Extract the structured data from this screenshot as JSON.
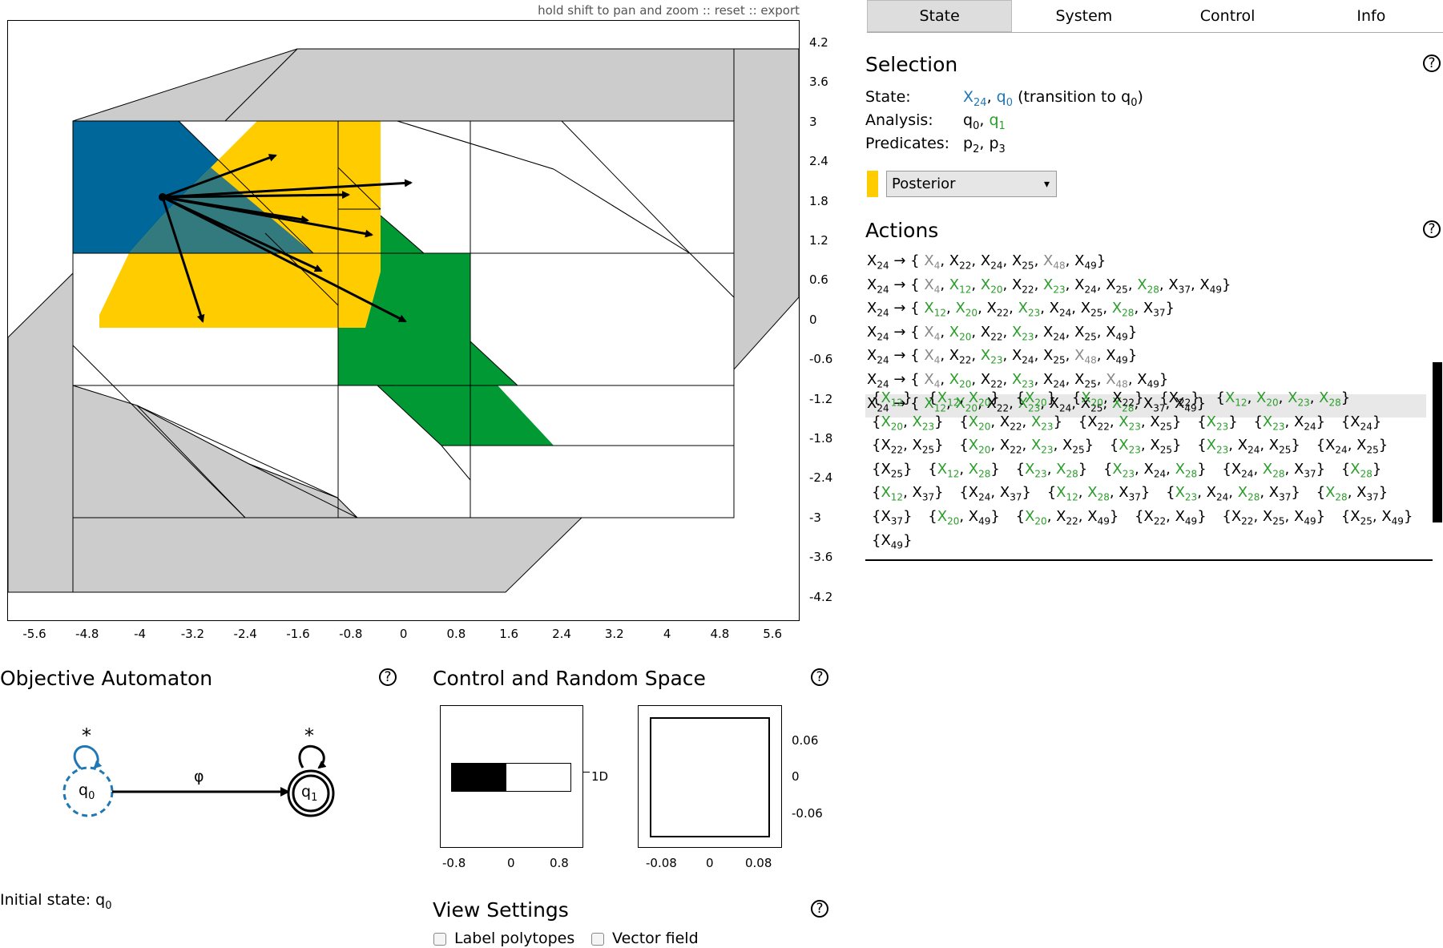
{
  "plot": {
    "links": [
      "hold shift to pan and zoom",
      "reset",
      "export"
    ],
    "separator": "::",
    "y_ticks": [
      "4.2",
      "3.6",
      "3",
      "2.4",
      "1.8",
      "1.2",
      "0.6",
      "0",
      "-0.6",
      "-1.2",
      "-1.8",
      "-2.4",
      "-3",
      "-3.6",
      "-4.2"
    ],
    "x_ticks": [
      "-5.6",
      "-4.8",
      "-4",
      "-3.2",
      "-2.4",
      "-1.6",
      "-0.8",
      "0",
      "0.8",
      "1.6",
      "2.4",
      "3.2",
      "4",
      "4.8",
      "5.6"
    ],
    "colors": {
      "selected_state": "#00679a",
      "posterior": "#ffcc00",
      "target": "#009933",
      "outer": "#cccccc"
    }
  },
  "tabs": [
    {
      "label": "State",
      "active": true
    },
    {
      "label": "System",
      "active": false
    },
    {
      "label": "Control",
      "active": false
    },
    {
      "label": "Info",
      "active": false
    }
  ],
  "selection": {
    "title": "Selection",
    "state_label": "State:",
    "state_value_1": "X",
    "state_value_1_sub": "24",
    "state_value_2": "q",
    "state_value_2_sub": "0",
    "state_transition": "(transition to q",
    "state_transition_sub": "0",
    "state_transition_end": ")",
    "analysis_label": "Analysis:",
    "analysis_q0": "q",
    "analysis_q0_sub": "0",
    "analysis_q1": "q",
    "analysis_q1_sub": "1",
    "predicates_label": "Predicates:",
    "pred_1": "p",
    "pred_1_sub": "2",
    "pred_2": "p",
    "pred_2_sub": "3",
    "dropdown_value": "Posterior",
    "dropdown_arrow": "▾"
  },
  "actions": {
    "title": "Actions",
    "items": [
      [
        [
          "X",
          "24",
          "k"
        ],
        [
          "→ {",
          null,
          "k"
        ],
        [
          "X",
          "4",
          "g"
        ],
        [
          "X",
          "22",
          "k"
        ],
        [
          "X",
          "24",
          "k"
        ],
        [
          "X",
          "25",
          "k"
        ],
        [
          "X",
          "48",
          "g"
        ],
        [
          "X",
          "49",
          "k"
        ]
      ],
      [
        [
          "X",
          "24",
          "k"
        ],
        [
          "→ {",
          null,
          "k"
        ],
        [
          "X",
          "4",
          "g"
        ],
        [
          "X",
          "12",
          "n"
        ],
        [
          "X",
          "20",
          "n"
        ],
        [
          "X",
          "22",
          "k"
        ],
        [
          "X",
          "23",
          "n"
        ],
        [
          "X",
          "24",
          "k"
        ],
        [
          "X",
          "25",
          "k"
        ],
        [
          "X",
          "28",
          "n"
        ],
        [
          "X",
          "37",
          "k"
        ],
        [
          "X",
          "49",
          "k"
        ]
      ],
      [
        [
          "X",
          "24",
          "k"
        ],
        [
          "→ {",
          null,
          "k"
        ],
        [
          "X",
          "12",
          "n"
        ],
        [
          "X",
          "20",
          "n"
        ],
        [
          "X",
          "22",
          "k"
        ],
        [
          "X",
          "23",
          "n"
        ],
        [
          "X",
          "24",
          "k"
        ],
        [
          "X",
          "25",
          "k"
        ],
        [
          "X",
          "28",
          "n"
        ],
        [
          "X",
          "37",
          "k"
        ]
      ],
      [
        [
          "X",
          "24",
          "k"
        ],
        [
          "→ {",
          null,
          "k"
        ],
        [
          "X",
          "4",
          "g"
        ],
        [
          "X",
          "20",
          "n"
        ],
        [
          "X",
          "22",
          "k"
        ],
        [
          "X",
          "23",
          "n"
        ],
        [
          "X",
          "24",
          "k"
        ],
        [
          "X",
          "25",
          "k"
        ],
        [
          "X",
          "49",
          "k"
        ]
      ],
      [
        [
          "X",
          "24",
          "k"
        ],
        [
          "→ {",
          null,
          "k"
        ],
        [
          "X",
          "4",
          "g"
        ],
        [
          "X",
          "22",
          "k"
        ],
        [
          "X",
          "23",
          "n"
        ],
        [
          "X",
          "24",
          "k"
        ],
        [
          "X",
          "25",
          "k"
        ],
        [
          "X",
          "48",
          "g"
        ],
        [
          "X",
          "49",
          "k"
        ]
      ],
      [
        [
          "X",
          "24",
          "k"
        ],
        [
          "→ {",
          null,
          "k"
        ],
        [
          "X",
          "4",
          "g"
        ],
        [
          "X",
          "20",
          "n"
        ],
        [
          "X",
          "22",
          "k"
        ],
        [
          "X",
          "23",
          "n"
        ],
        [
          "X",
          "24",
          "k"
        ],
        [
          "X",
          "25",
          "k"
        ],
        [
          "X",
          "48",
          "g"
        ],
        [
          "X",
          "49",
          "k"
        ]
      ],
      [
        [
          "X",
          "24",
          "k"
        ],
        [
          "→ {",
          null,
          "k"
        ],
        [
          "X",
          "12",
          "n"
        ],
        [
          "X",
          "20",
          "n"
        ],
        [
          "X",
          "22",
          "k"
        ],
        [
          "X",
          "23",
          "n"
        ],
        [
          "X",
          "24",
          "k"
        ],
        [
          "X",
          "25",
          "k"
        ],
        [
          "X",
          "28",
          "n"
        ],
        [
          "X",
          "37",
          "k"
        ],
        [
          "X",
          "49",
          "k"
        ]
      ]
    ],
    "selected_index": 6,
    "subsets": [
      [
        [
          "12",
          "n"
        ]
      ],
      [
        [
          "12",
          "n"
        ],
        [
          "20",
          "n"
        ]
      ],
      [
        [
          "20",
          "n"
        ]
      ],
      [
        [
          "20",
          "n"
        ],
        [
          "22",
          "k"
        ]
      ],
      [
        [
          "22",
          "k"
        ]
      ],
      [
        [
          "12",
          "n"
        ],
        [
          "20",
          "n"
        ],
        [
          "23",
          "n"
        ],
        [
          "28",
          "n"
        ]
      ],
      [
        [
          "20",
          "n"
        ],
        [
          "23",
          "n"
        ]
      ],
      [
        [
          "20",
          "n"
        ],
        [
          "22",
          "k"
        ],
        [
          "23",
          "n"
        ]
      ],
      [
        [
          "22",
          "k"
        ],
        [
          "23",
          "n"
        ],
        [
          "25",
          "k"
        ]
      ],
      [
        [
          "23",
          "n"
        ]
      ],
      [
        [
          "23",
          "n"
        ],
        [
          "24",
          "k"
        ]
      ],
      [
        [
          "24",
          "k"
        ]
      ],
      [
        [
          "22",
          "k"
        ],
        [
          "25",
          "k"
        ]
      ],
      [
        [
          "20",
          "n"
        ],
        [
          "22",
          "k"
        ],
        [
          "23",
          "n"
        ],
        [
          "25",
          "k"
        ]
      ],
      [
        [
          "23",
          "n"
        ],
        [
          "25",
          "k"
        ]
      ],
      [
        [
          "23",
          "n"
        ],
        [
          "24",
          "k"
        ],
        [
          "25",
          "k"
        ]
      ],
      [
        [
          "24",
          "k"
        ],
        [
          "25",
          "k"
        ]
      ],
      [
        [
          "25",
          "k"
        ]
      ],
      [
        [
          "12",
          "n"
        ],
        [
          "28",
          "n"
        ]
      ],
      [
        [
          "23",
          "n"
        ],
        [
          "28",
          "n"
        ]
      ],
      [
        [
          "23",
          "n"
        ],
        [
          "24",
          "k"
        ],
        [
          "28",
          "n"
        ]
      ],
      [
        [
          "24",
          "k"
        ],
        [
          "28",
          "n"
        ],
        [
          "37",
          "k"
        ]
      ],
      [
        [
          "28",
          "n"
        ]
      ],
      [
        [
          "12",
          "n"
        ],
        [
          "37",
          "k"
        ]
      ],
      [
        [
          "24",
          "k"
        ],
        [
          "37",
          "k"
        ]
      ],
      [
        [
          "12",
          "n"
        ],
        [
          "28",
          "n"
        ],
        [
          "37",
          "k"
        ]
      ],
      [
        [
          "23",
          "n"
        ],
        [
          "24",
          "k"
        ],
        [
          "28",
          "n"
        ],
        [
          "37",
          "k"
        ]
      ],
      [
        [
          "28",
          "n"
        ],
        [
          "37",
          "k"
        ]
      ],
      [
        [
          "37",
          "k"
        ]
      ],
      [
        [
          "20",
          "n"
        ],
        [
          "49",
          "k"
        ]
      ],
      [
        [
          "20",
          "n"
        ],
        [
          "22",
          "k"
        ],
        [
          "49",
          "k"
        ]
      ],
      [
        [
          "22",
          "k"
        ],
        [
          "49",
          "k"
        ]
      ],
      [
        [
          "22",
          "k"
        ],
        [
          "25",
          "k"
        ],
        [
          "49",
          "k"
        ]
      ],
      [
        [
          "25",
          "k"
        ],
        [
          "49",
          "k"
        ]
      ],
      [
        [
          "49",
          "k"
        ]
      ]
    ]
  },
  "automaton": {
    "title": "Objective Automaton",
    "self_loop_label_q0": "*",
    "self_loop_label_q1": "*",
    "edge_label": "φ",
    "q0": "q",
    "q0_sub": "0",
    "q1": "q",
    "q1_sub": "1",
    "initial_state_label": "Initial state: q",
    "initial_state_sub": "0"
  },
  "control_space": {
    "title": "Control and Random Space",
    "left_x_ticks": [
      "-0.8",
      "0",
      "0.8"
    ],
    "dim_label": "1D",
    "right_y_ticks": [
      "0.06",
      "0",
      "-0.06"
    ],
    "right_x_ticks": [
      "-0.08",
      "0",
      "0.08"
    ]
  },
  "view_settings": {
    "title": "View Settings",
    "label_polytopes": "Label polytopes",
    "vector_field": "Vector field"
  },
  "help_glyph": "?"
}
